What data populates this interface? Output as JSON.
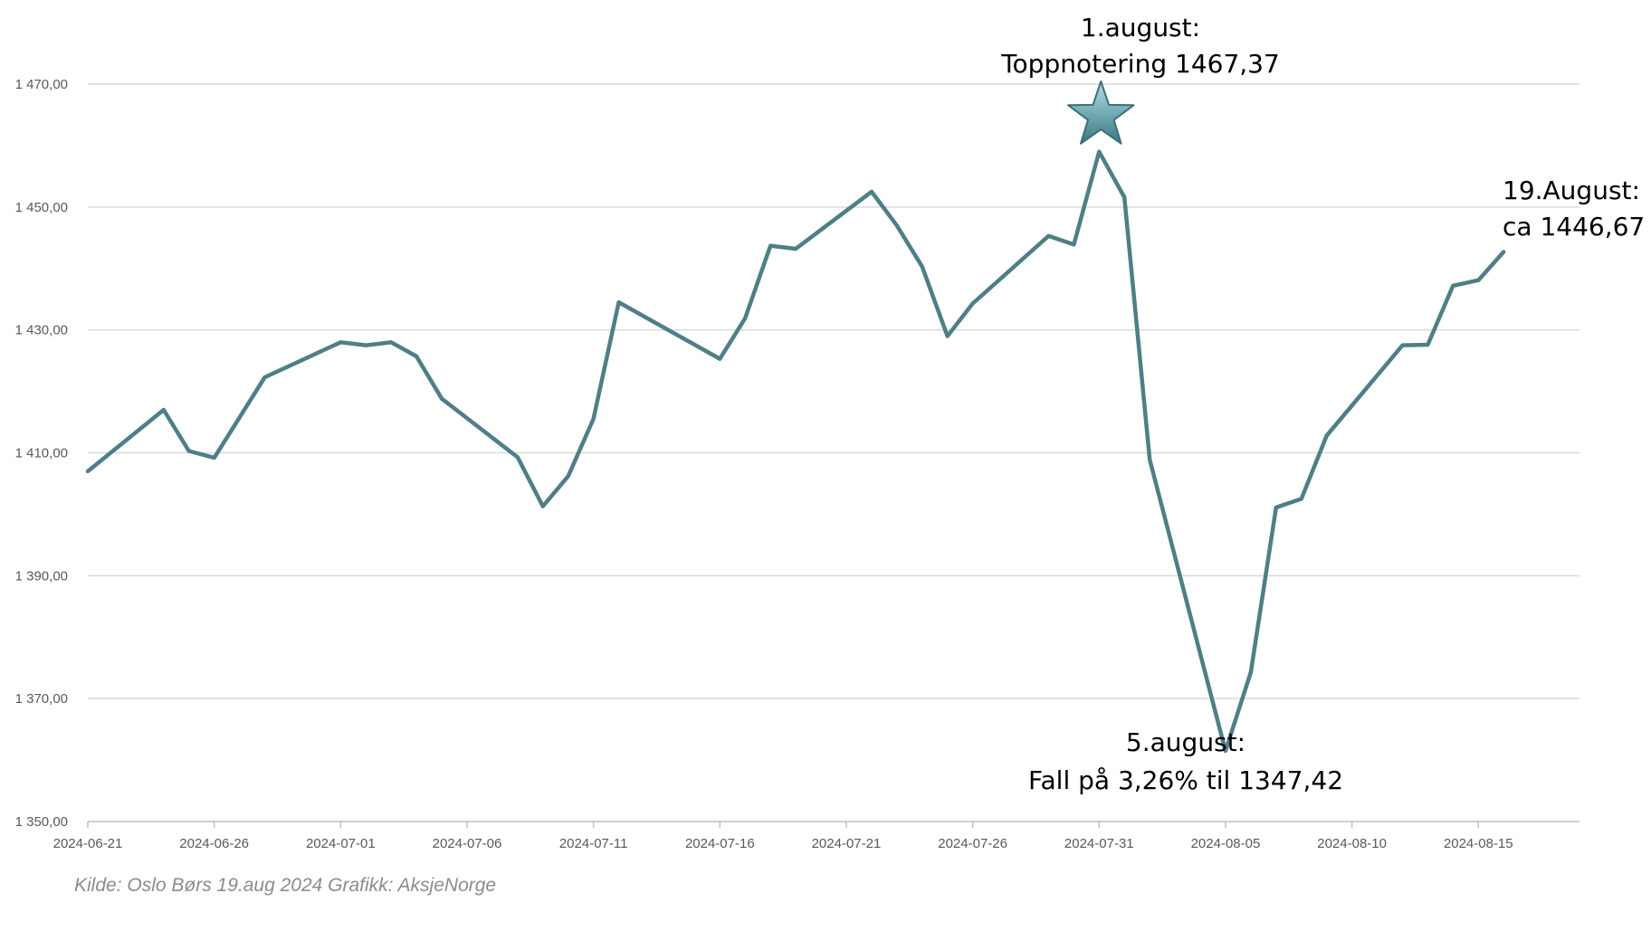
{
  "chart_data": {
    "type": "line",
    "title": "",
    "xlabel": "",
    "ylabel": "",
    "ylim": [
      1350,
      1470
    ],
    "y_ticks": [
      1350,
      1370,
      1390,
      1410,
      1430,
      1450,
      1470
    ],
    "y_tick_labels": [
      "1 350,00",
      "1 370,00",
      "1 390,00",
      "1 410,00",
      "1 430,00",
      "1 450,00",
      "1 470,00"
    ],
    "x_range": [
      "2024-06-21",
      "2024-08-19"
    ],
    "x_tick_labels": [
      "2024-06-21",
      "2024-06-26",
      "2024-07-01",
      "2024-07-06",
      "2024-07-11",
      "2024-07-16",
      "2024-07-21",
      "2024-07-26",
      "2024-07-31",
      "2024-08-05",
      "2024-08-10",
      "2024-08-15"
    ],
    "grid": "horizontal",
    "legend": "none",
    "series": [
      {
        "color": "#4e7f86",
        "points": [
          {
            "x": "2024-06-21",
            "y": 1407.0
          },
          {
            "x": "2024-06-24",
            "y": 1417.0
          },
          {
            "x": "2024-06-25",
            "y": 1410.3
          },
          {
            "x": "2024-06-26",
            "y": 1409.2
          },
          {
            "x": "2024-06-28",
            "y": 1422.3
          },
          {
            "x": "2024-07-01",
            "y": 1428.0
          },
          {
            "x": "2024-07-02",
            "y": 1427.5
          },
          {
            "x": "2024-07-03",
            "y": 1428.0
          },
          {
            "x": "2024-07-04",
            "y": 1425.7
          },
          {
            "x": "2024-07-05",
            "y": 1418.8
          },
          {
            "x": "2024-07-08",
            "y": 1409.3
          },
          {
            "x": "2024-07-09",
            "y": 1401.3
          },
          {
            "x": "2024-07-10",
            "y": 1406.2
          },
          {
            "x": "2024-07-11",
            "y": 1415.5
          },
          {
            "x": "2024-07-12",
            "y": 1434.5
          },
          {
            "x": "2024-07-16",
            "y": 1425.3
          },
          {
            "x": "2024-07-17",
            "y": 1431.9
          },
          {
            "x": "2024-07-18",
            "y": 1443.7
          },
          {
            "x": "2024-07-19",
            "y": 1443.2
          },
          {
            "x": "2024-07-22",
            "y": 1452.5
          },
          {
            "x": "2024-07-23",
            "y": 1447.0
          },
          {
            "x": "2024-07-24",
            "y": 1440.3
          },
          {
            "x": "2024-07-25",
            "y": 1429.0
          },
          {
            "x": "2024-07-26",
            "y": 1434.3
          },
          {
            "x": "2024-07-29",
            "y": 1445.3
          },
          {
            "x": "2024-07-30",
            "y": 1443.9
          },
          {
            "x": "2024-07-31",
            "y": 1459.0
          },
          {
            "x": "2024-08-01",
            "y": 1451.6
          },
          {
            "x": "2024-08-02",
            "y": 1408.9
          },
          {
            "x": "2024-08-05",
            "y": 1361.5
          },
          {
            "x": "2024-08-06",
            "y": 1374.3
          },
          {
            "x": "2024-08-07",
            "y": 1401.1
          },
          {
            "x": "2024-08-08",
            "y": 1402.5
          },
          {
            "x": "2024-08-09",
            "y": 1412.8
          },
          {
            "x": "2024-08-12",
            "y": 1427.5
          },
          {
            "x": "2024-08-13",
            "y": 1427.6
          },
          {
            "x": "2024-08-14",
            "y": 1437.2
          },
          {
            "x": "2024-08-15",
            "y": 1438.1
          },
          {
            "x": "2024-08-16",
            "y": 1442.7
          }
        ]
      }
    ],
    "annotations": [
      {
        "id": "peak",
        "lines": [
          "1.august:",
          "Toppnotering 1467,37"
        ]
      },
      {
        "id": "latest",
        "lines": [
          "19.August:",
          "ca 1446,67"
        ]
      },
      {
        "id": "dip",
        "lines": [
          "5.august:",
          "Fall på 3,26% til 1347,42"
        ]
      }
    ],
    "marker": {
      "type": "star-icon",
      "x": "2024-07-31",
      "color": "#5f99a3"
    },
    "source_note": "Kilde: Oslo Børs 19.aug 2024   Grafikk: AksjeNorge"
  }
}
